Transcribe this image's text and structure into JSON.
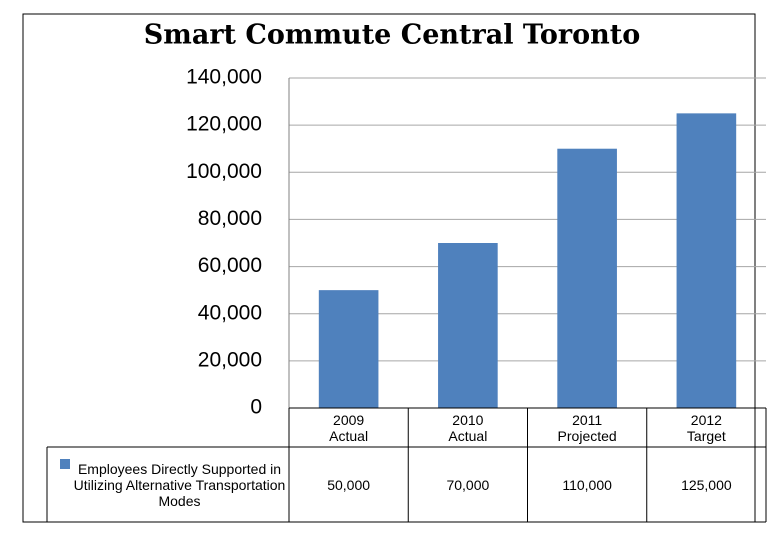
{
  "chart_data": {
    "type": "bar",
    "title": "Smart Commute Central Toronto",
    "categories": [
      "2009 Actual",
      "2010 Actual",
      "2011 Projected",
      "2012 Target"
    ],
    "series": [
      {
        "name": "Employees Directly Supported in Utilizing Alternative Transportation Modes",
        "color": "#4f81bd",
        "values": [
          50000,
          70000,
          110000,
          125000
        ],
        "value_labels": [
          "50,000",
          "70,000",
          "110,000",
          "125,000"
        ]
      }
    ],
    "ylim": [
      0,
      140000
    ],
    "yticks": [
      0,
      {
        "value": 20000,
        "label": "20,000"
      },
      {
        "value": 40000,
        "label": "40,000"
      },
      {
        "value": 60000,
        "label": "60,000"
      },
      {
        "value": 80000,
        "label": "80,000"
      },
      {
        "value": 100000,
        "label": "100,000"
      },
      {
        "value": 120000,
        "label": "120,000"
      },
      {
        "value": 140000,
        "label": "140,000"
      }
    ],
    "grid": true,
    "data_table": true
  }
}
